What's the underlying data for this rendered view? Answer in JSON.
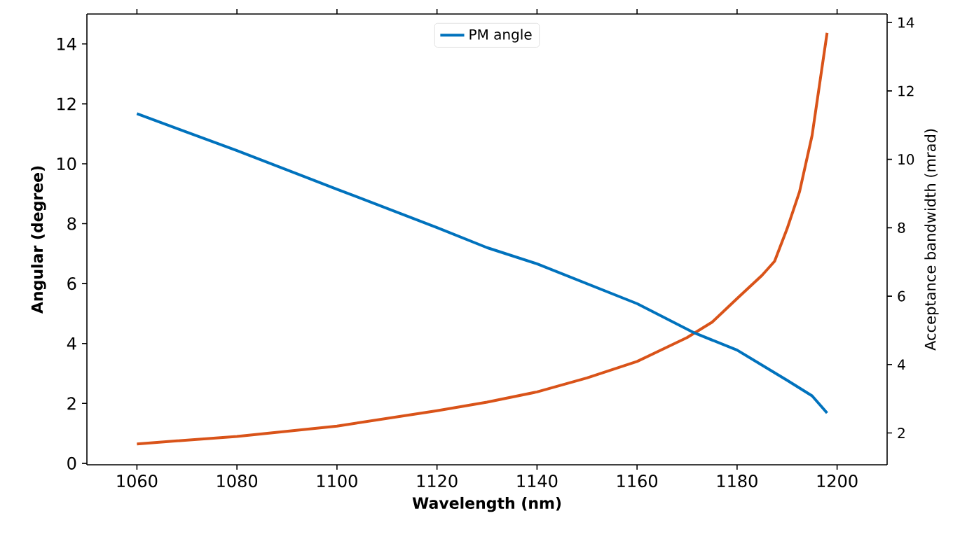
{
  "chart_data": {
    "type": "line",
    "xlabel": "Wavelength (nm)",
    "ylabel": "Angular (degree)",
    "y2label": "Acceptance bandwidth (mrad)",
    "xlim": [
      1050,
      1210
    ],
    "xticks": [
      1060,
      1080,
      1100,
      1120,
      1140,
      1160,
      1180,
      1200
    ],
    "ylim": [
      -0.05,
      15
    ],
    "yticks": [
      0,
      2,
      4,
      6,
      8,
      10,
      12,
      14
    ],
    "y2lim": [
      1.07,
      14.25
    ],
    "y2ticks": [
      2,
      4,
      6,
      8,
      10,
      12,
      14
    ],
    "legend": "top",
    "grid": false,
    "series": [
      {
        "name": "PM angle",
        "color": "#0072bd",
        "x": [
          1060,
          1080,
          1100,
          1120,
          1130,
          1140,
          1160,
          1171.5,
          1180,
          1190,
          1195,
          1198
        ],
        "values": [
          11.67,
          10.44,
          9.15,
          7.87,
          7.2,
          6.66,
          5.33,
          4.35,
          3.78,
          2.77,
          2.25,
          1.68
        ]
      },
      {
        "color": "#d95319",
        "axis": "y2",
        "x": [
          1060,
          1080,
          1100,
          1120,
          1130,
          1140,
          1150,
          1160,
          1170,
          1175,
          1180,
          1185,
          1187.5,
          1190,
          1192.5,
          1195,
          1196.5,
          1198
        ],
        "values": [
          1.68,
          1.9,
          2.2,
          2.65,
          2.9,
          3.2,
          3.61,
          4.09,
          4.79,
          5.24,
          5.93,
          6.61,
          7.02,
          7.97,
          9.06,
          10.7,
          12.2,
          13.7
        ]
      }
    ]
  }
}
